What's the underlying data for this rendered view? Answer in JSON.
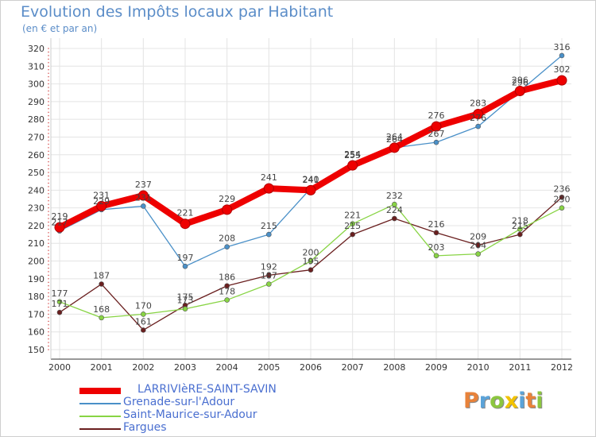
{
  "header": {
    "title": "Evolution des Impôts locaux par Habitant",
    "subtitle": "(en € et par an)"
  },
  "logo": {
    "text": "Proxiti",
    "letters": [
      {
        "ch": "P",
        "color": "#e8823a"
      },
      {
        "ch": "r",
        "color": "#5ba3d9"
      },
      {
        "ch": "o",
        "color": "#8cc63f"
      },
      {
        "ch": "x",
        "color": "#f2c200"
      },
      {
        "ch": "i",
        "color": "#5ba3d9"
      },
      {
        "ch": "t",
        "color": "#e8823a"
      },
      {
        "ch": "i",
        "color": "#8cc63f"
      }
    ]
  },
  "chart_data": {
    "type": "line",
    "title": "Evolution des Impôts locaux par Habitant",
    "subtitle": "(en € et par an)",
    "xlabel": "",
    "ylabel": "",
    "x": [
      "2000",
      "2001",
      "2002",
      "2003",
      "2004",
      "2005",
      "2006",
      "2007",
      "2008",
      "2009",
      "2010",
      "2011",
      "2012"
    ],
    "ylim": [
      150,
      320
    ],
    "yticks": [
      150,
      160,
      170,
      180,
      190,
      200,
      210,
      220,
      230,
      240,
      250,
      260,
      270,
      280,
      290,
      300,
      310,
      320
    ],
    "grid": true,
    "legend_position": "bottom-left",
    "series": [
      {
        "name": "LARRIVIèRE-SAINT-SAVIN",
        "color": "#ee0000",
        "values": [
          219,
          231,
          237,
          221,
          229,
          241,
          240,
          254,
          264,
          276,
          283,
          296,
          302
        ]
      },
      {
        "name": "Grenade-sur-l'Adour",
        "color": "#4a90c8",
        "values": [
          217,
          229,
          231,
          197,
          208,
          215,
          241,
          255,
          264,
          267,
          276,
          296,
          316
        ]
      },
      {
        "name": "Saint-Maurice-sur-Adour",
        "color": "#88d444",
        "values": [
          177,
          168,
          170,
          173,
          178,
          187,
          200,
          221,
          232,
          203,
          204,
          218,
          230
        ]
      },
      {
        "name": "Fargues",
        "color": "#6a1f1f",
        "values": [
          171,
          187,
          161,
          175,
          186,
          192,
          195,
          215,
          224,
          216,
          209,
          215,
          236
        ]
      }
    ]
  }
}
